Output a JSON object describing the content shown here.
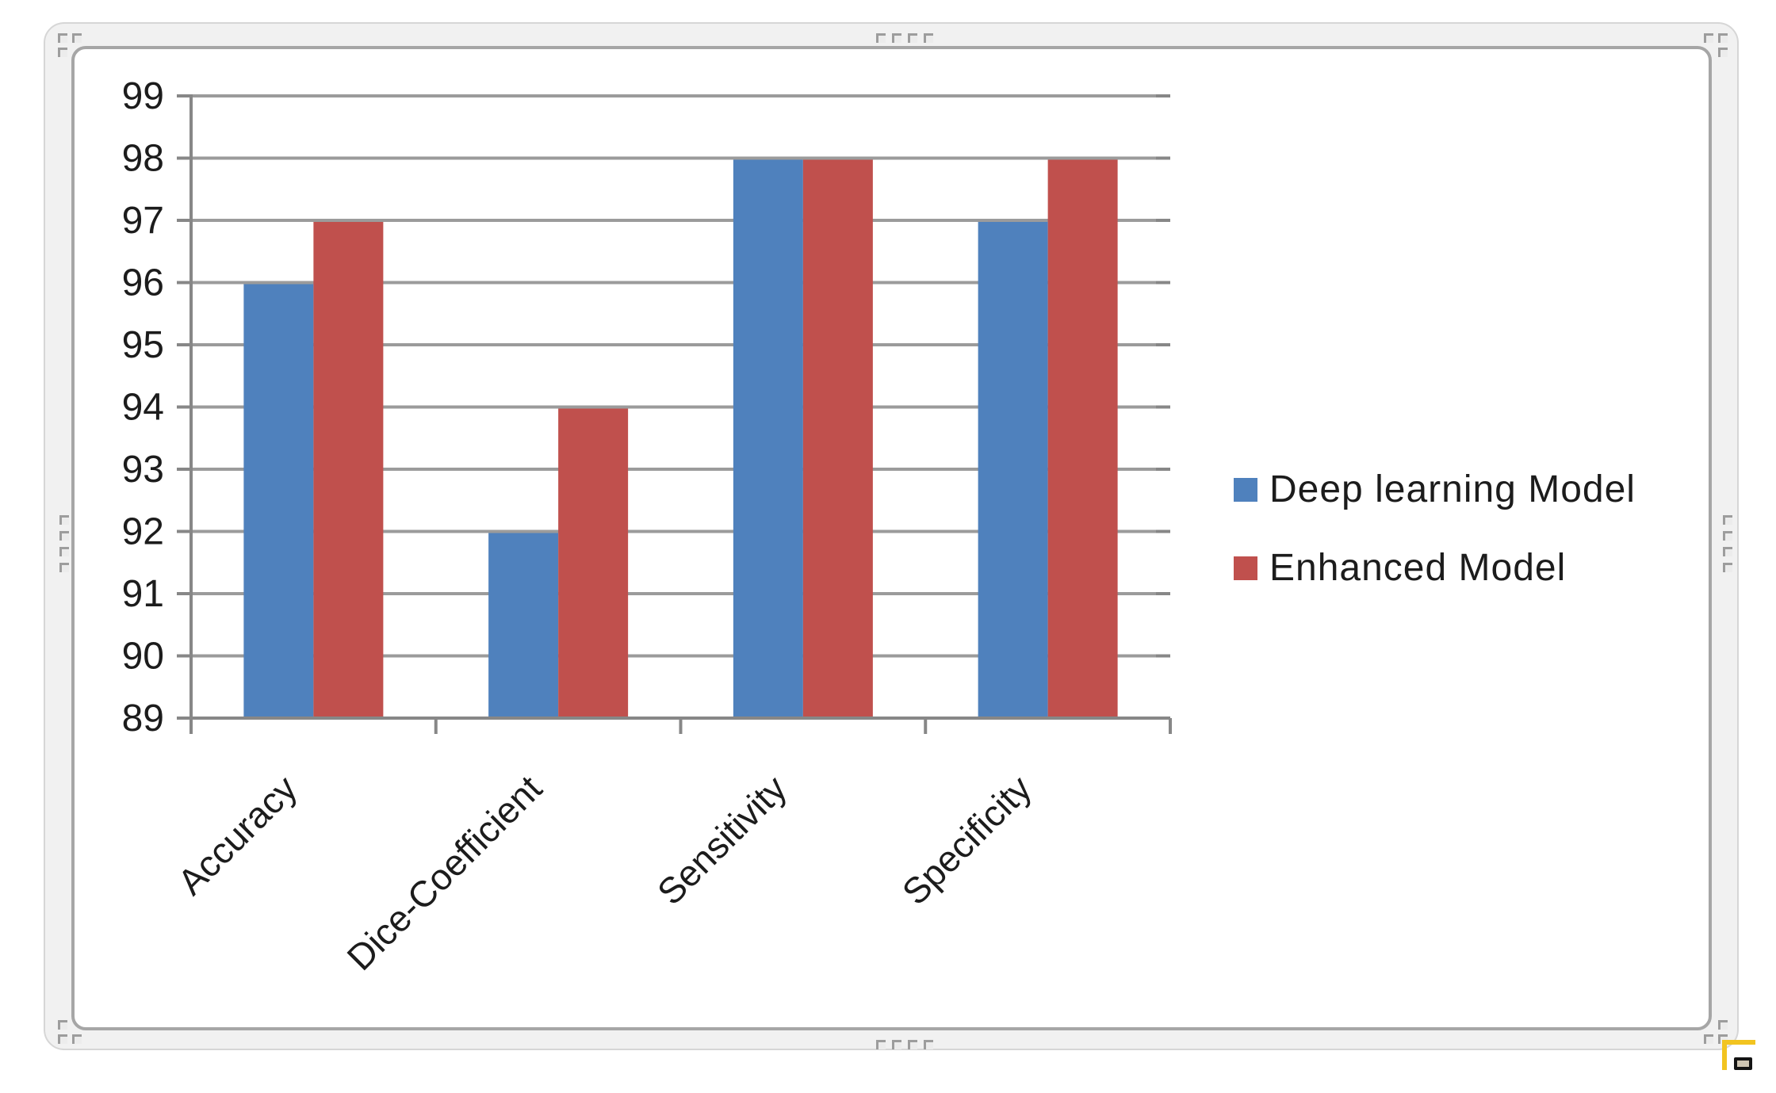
{
  "chart_data": {
    "type": "bar",
    "categories": [
      "Accuracy",
      "Dice-Coefficient",
      "Sensitivity",
      "Specificity"
    ],
    "series": [
      {
        "name": "Deep learning Model",
        "color": "#4F81BD",
        "values": [
          96,
          92,
          98,
          97
        ]
      },
      {
        "name": "Enhanced Model",
        "color": "#C0504D",
        "values": [
          97,
          94,
          98,
          98
        ]
      }
    ],
    "title": "",
    "xlabel": "",
    "ylabel": "",
    "ylim": [
      89,
      99
    ],
    "ytick_step": 1,
    "yticks": [
      89,
      90,
      91,
      92,
      93,
      94,
      95,
      96,
      97,
      98,
      99
    ],
    "grid": true,
    "legend_position": "right",
    "styles": {
      "gridline_color": "#9B9B9B",
      "axis_color": "#878787",
      "tick_label_color": "#1C1C1C",
      "plot_background": "#FFFFFF"
    }
  },
  "selection_frame": {
    "handle_color": "#9D9D9D",
    "band_color": "#F1F1F1",
    "inner_border_color": "#A6A6A6"
  },
  "decorations": {
    "yellow_bracket_color": "#F2C420"
  }
}
